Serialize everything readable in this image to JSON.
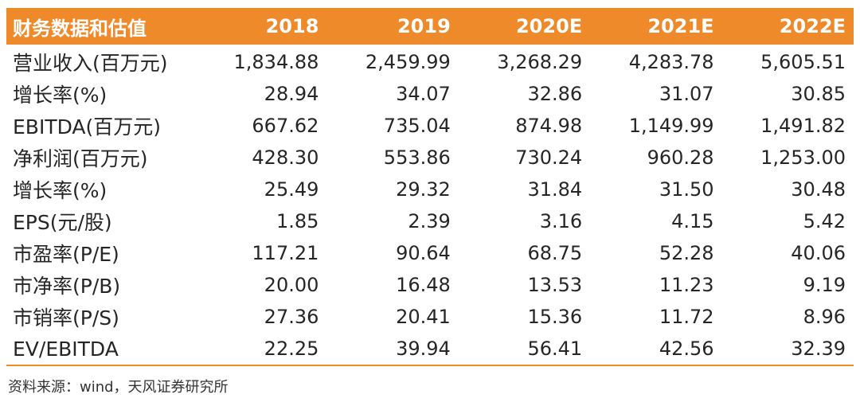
{
  "table": {
    "header": [
      "财务数据和估值",
      "2018",
      "2019",
      "2020E",
      "2021E",
      "2022E"
    ],
    "rows": [
      {
        "label": "营业收入(百万元)",
        "values": [
          "1,834.88",
          "2,459.99",
          "3,268.29",
          "4,283.78",
          "5,605.51"
        ]
      },
      {
        "label": "增长率(%)",
        "values": [
          "28.94",
          "34.07",
          "32.86",
          "31.07",
          "30.85"
        ]
      },
      {
        "label": "EBITDA(百万元)",
        "values": [
          "667.62",
          "735.04",
          "874.98",
          "1,149.99",
          "1,491.82"
        ]
      },
      {
        "label": "净利润(百万元)",
        "values": [
          "428.30",
          "553.86",
          "730.24",
          "960.28",
          "1,253.00"
        ]
      },
      {
        "label": "增长率(%)",
        "values": [
          "25.49",
          "29.32",
          "31.84",
          "31.50",
          "30.48"
        ]
      },
      {
        "label": "EPS(元/股)",
        "values": [
          "1.85",
          "2.39",
          "3.16",
          "4.15",
          "5.42"
        ]
      },
      {
        "label": "市盈率(P/E)",
        "values": [
          "117.21",
          "90.64",
          "68.75",
          "52.28",
          "40.06"
        ]
      },
      {
        "label": "市净率(P/B)",
        "values": [
          "20.00",
          "16.48",
          "13.53",
          "11.23",
          "9.19"
        ]
      },
      {
        "label": "市销率(P/S)",
        "values": [
          "27.36",
          "20.41",
          "15.36",
          "11.72",
          "8.96"
        ]
      },
      {
        "label": "EV/EBITDA",
        "values": [
          "22.25",
          "39.94",
          "56.41",
          "42.56",
          "32.39"
        ]
      }
    ]
  },
  "source": "资料来源：wind，天风证券研究所",
  "colors": {
    "header_bg": "#ee8a2a",
    "header_text": "#ffffff",
    "text": "#262626"
  }
}
